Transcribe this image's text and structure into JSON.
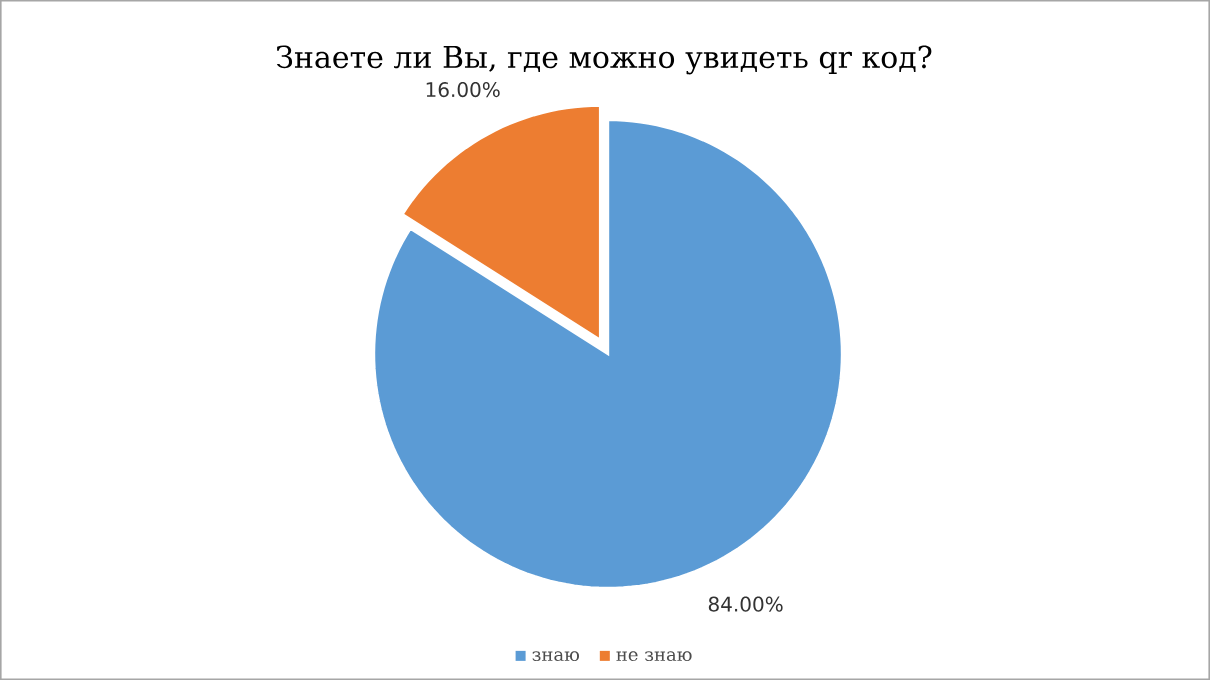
{
  "chart_data": {
    "type": "pie",
    "title": "Знаете ли Вы, где можно увидеть qr код?",
    "categories": [
      "знаю",
      "не знаю"
    ],
    "values": [
      84,
      16
    ],
    "colors": [
      "#5b9bd5",
      "#ed7d31"
    ],
    "value_labels": [
      "84.00%",
      "16.00%"
    ],
    "legend": "bottom"
  }
}
